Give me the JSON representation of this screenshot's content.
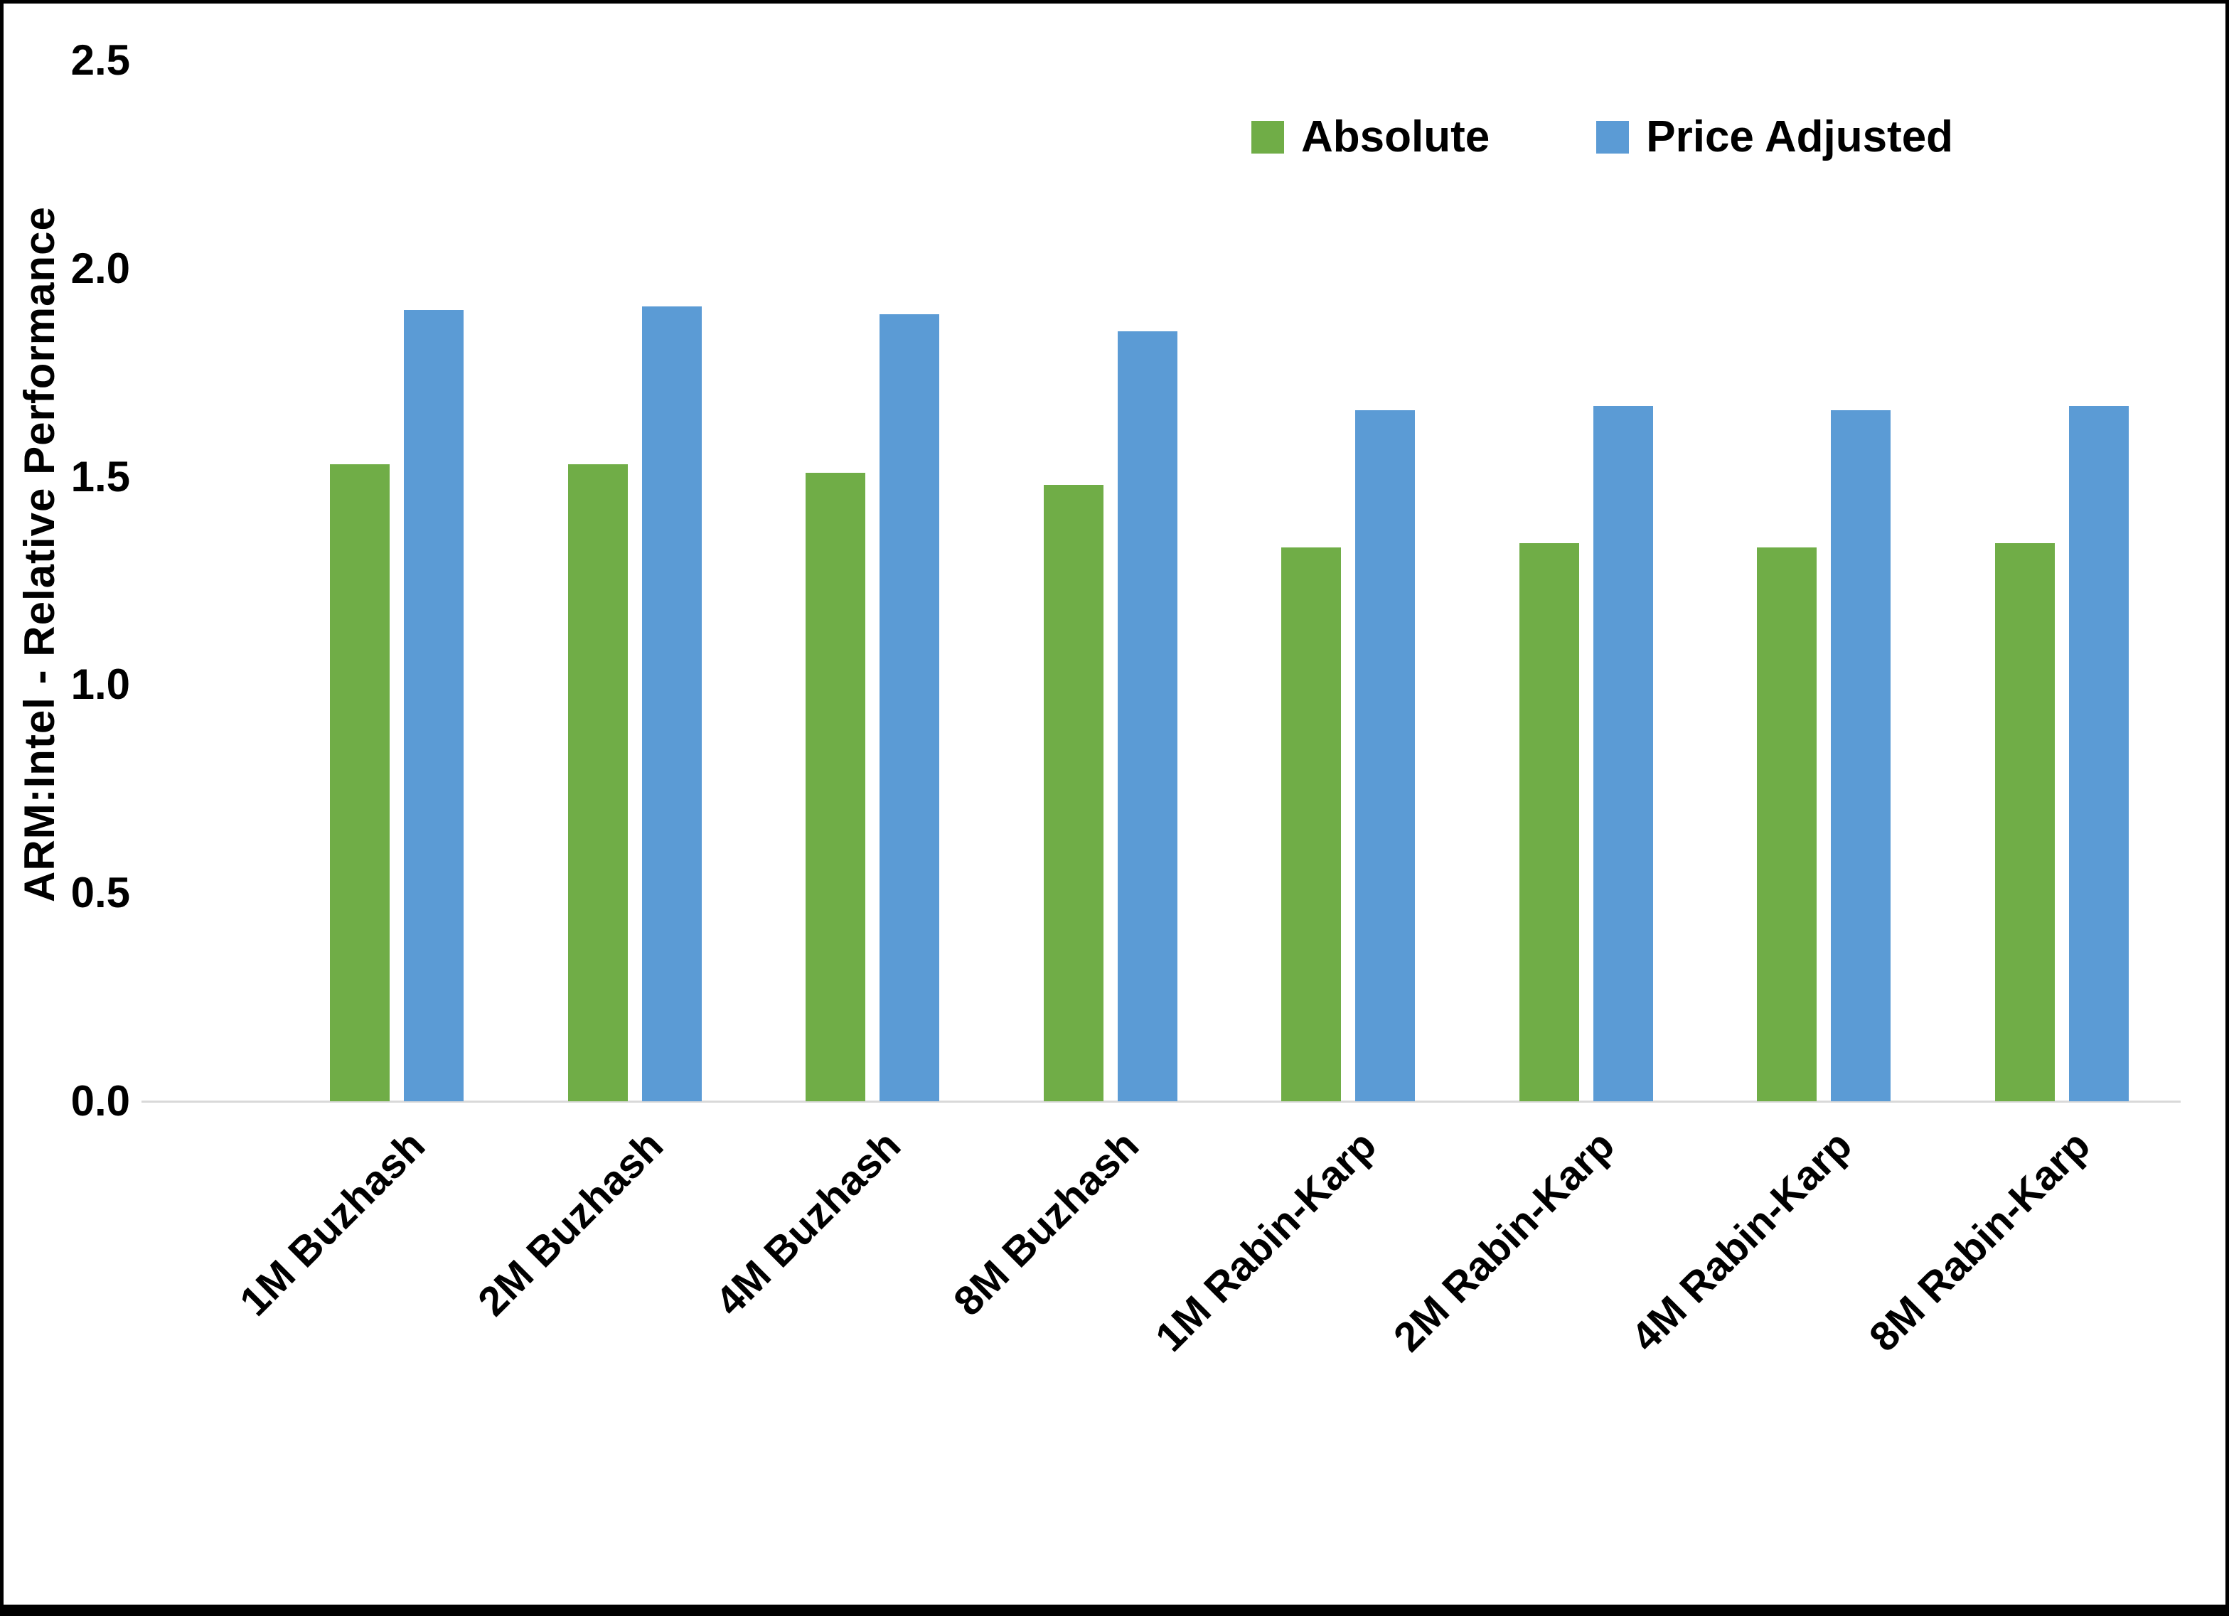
{
  "chart_data": {
    "type": "bar",
    "categories": [
      "1M Buzhash",
      "2M Buzhash",
      "4M Buzhash",
      "8M Buzhash",
      "1M Rabin-Karp",
      "2M Rabin-Karp",
      "4M Rabin-Karp",
      "8M Rabin-Karp"
    ],
    "series": [
      {
        "name": "Absolute",
        "color": "#70AD47",
        "values": [
          1.53,
          1.53,
          1.51,
          1.48,
          1.33,
          1.34,
          1.33,
          1.34
        ]
      },
      {
        "name": "Price Adjusted",
        "color": "#5B9BD5",
        "values": [
          1.9,
          1.91,
          1.89,
          1.85,
          1.66,
          1.67,
          1.66,
          1.67
        ]
      }
    ],
    "title": "",
    "xlabel": "",
    "ylabel": "ARM:Intel - Relative Performance",
    "ylim": [
      0,
      2.5
    ],
    "yticks": [
      "0.0",
      "0.5",
      "1.0",
      "1.5",
      "2.0",
      "2.5"
    ],
    "grid": false,
    "legend_position": "top-right"
  }
}
